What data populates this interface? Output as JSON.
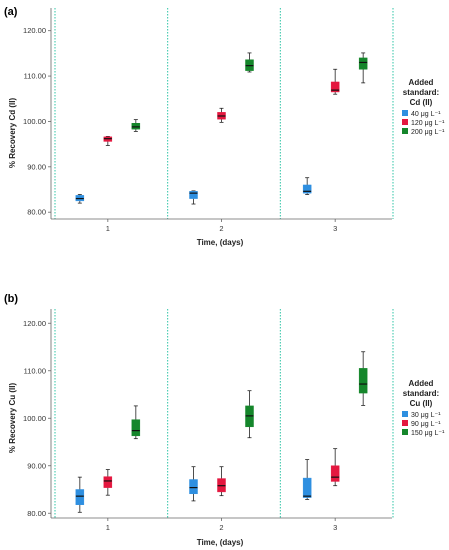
{
  "chart_data": [
    {
      "panel": "(a)",
      "type": "box",
      "ylabel": "% Recovery Cd (II)",
      "xlabel": "Time, (days)",
      "ylim": [
        78.5,
        125
      ],
      "yticks": [
        "80.00",
        "90.00",
        "100.00",
        "110.00",
        "120.00"
      ],
      "categories": [
        "1",
        "2",
        "3"
      ],
      "legend": {
        "title_line1": "Added",
        "title_line2": "standard:",
        "title_line3": "Cd (II)",
        "position": "right"
      },
      "series": [
        {
          "name": "40 μg L⁻¹",
          "color": "#2e8fe0",
          "boxes": [
            {
              "min": 82.0,
              "q1": 82.5,
              "median": 83.0,
              "q3": 83.7,
              "max": 83.9
            },
            {
              "min": 81.8,
              "q1": 83.0,
              "median": 84.2,
              "q3": 84.6,
              "max": 84.7
            },
            {
              "min": 83.9,
              "q1": 84.2,
              "median": 84.6,
              "q3": 86.0,
              "max": 87.6
            }
          ]
        },
        {
          "name": "120 μg L⁻¹",
          "color": "#e4173f",
          "boxes": [
            {
              "min": 94.7,
              "q1": 95.6,
              "median": 96.2,
              "q3": 96.6,
              "max": 96.7
            },
            {
              "min": 99.8,
              "q1": 100.5,
              "median": 101.2,
              "q3": 102.0,
              "max": 102.9
            },
            {
              "min": 106.0,
              "q1": 106.5,
              "median": 106.9,
              "q3": 108.7,
              "max": 111.5
            }
          ]
        },
        {
          "name": "200 μg L⁻¹",
          "color": "#15862b",
          "boxes": [
            {
              "min": 97.8,
              "q1": 98.3,
              "median": 98.8,
              "q3": 99.6,
              "max": 100.4
            },
            {
              "min": 110.9,
              "q1": 111.2,
              "median": 112.3,
              "q3": 113.6,
              "max": 115.1
            },
            {
              "min": 108.5,
              "q1": 111.5,
              "median": 113.0,
              "q3": 114.0,
              "max": 115.1
            }
          ]
        }
      ]
    },
    {
      "panel": "(b)",
      "type": "box",
      "ylabel": "% Recovery Cu (II)",
      "xlabel": "Time, (days)",
      "ylim": [
        79,
        123
      ],
      "yticks": [
        "80.00",
        "90.00",
        "100.00",
        "110.00",
        "120.00"
      ],
      "categories": [
        "1",
        "2",
        "3"
      ],
      "legend": {
        "title_line1": "Added",
        "title_line2": "standard:",
        "title_line3": "Cu (II)",
        "position": "right"
      },
      "series": [
        {
          "name": "30 μg L⁻¹",
          "color": "#2e8fe0",
          "boxes": [
            {
              "min": 80.2,
              "q1": 81.8,
              "median": 83.6,
              "q3": 85.0,
              "max": 87.6
            },
            {
              "min": 82.6,
              "q1": 84.1,
              "median": 85.4,
              "q3": 87.1,
              "max": 89.8
            },
            {
              "min": 82.9,
              "q1": 83.3,
              "median": 83.6,
              "q3": 87.4,
              "max": 91.3
            }
          ]
        },
        {
          "name": "90 μg L⁻¹",
          "color": "#e4173f",
          "boxes": [
            {
              "min": 83.8,
              "q1": 85.4,
              "median": 86.8,
              "q3": 87.7,
              "max": 89.2
            },
            {
              "min": 83.7,
              "q1": 84.5,
              "median": 85.8,
              "q3": 87.3,
              "max": 89.8
            },
            {
              "min": 85.8,
              "q1": 86.7,
              "median": 87.6,
              "q3": 90.0,
              "max": 93.6
            }
          ]
        },
        {
          "name": "150 μg L⁻¹",
          "color": "#15862b",
          "boxes": [
            {
              "min": 95.7,
              "q1": 96.3,
              "median": 97.4,
              "q3": 99.7,
              "max": 102.6
            },
            {
              "min": 95.9,
              "q1": 98.2,
              "median": 100.5,
              "q3": 102.6,
              "max": 105.8
            },
            {
              "min": 102.7,
              "q1": 105.3,
              "median": 107.2,
              "q3": 110.5,
              "max": 114.0
            }
          ]
        }
      ]
    }
  ]
}
